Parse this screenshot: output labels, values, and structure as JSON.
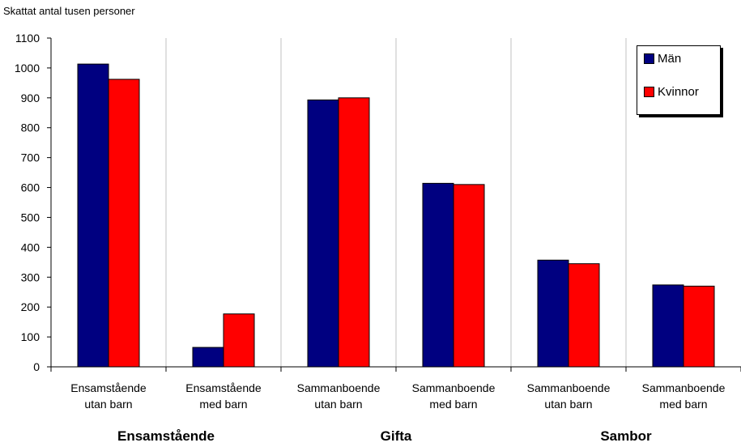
{
  "chart_data": {
    "type": "bar",
    "ylabel": "Skattat antal tusen personer",
    "ylim": [
      0,
      1100
    ],
    "yticks": [
      0,
      100,
      200,
      300,
      400,
      500,
      600,
      700,
      800,
      900,
      1000,
      1100
    ],
    "categories": [
      [
        "Ensamstående",
        "utan barn"
      ],
      [
        "Ensamstående",
        "med barn"
      ],
      [
        "Sammanboende",
        "utan barn"
      ],
      [
        "Sammanboende",
        "med barn"
      ],
      [
        "Sammanboende",
        "utan barn"
      ],
      [
        "Sammanboende",
        "med barn"
      ]
    ],
    "groups": [
      "Ensamstående",
      "Gifta",
      "Sambor"
    ],
    "series": [
      {
        "name": "Män",
        "color": "#000080",
        "values": [
          1013,
          65,
          893,
          614,
          357,
          274
        ]
      },
      {
        "name": "Kvinnor",
        "color": "#ff0000",
        "values": [
          962,
          177,
          900,
          610,
          345,
          270
        ]
      }
    ],
    "grid": true,
    "legend_position": "top-right"
  }
}
